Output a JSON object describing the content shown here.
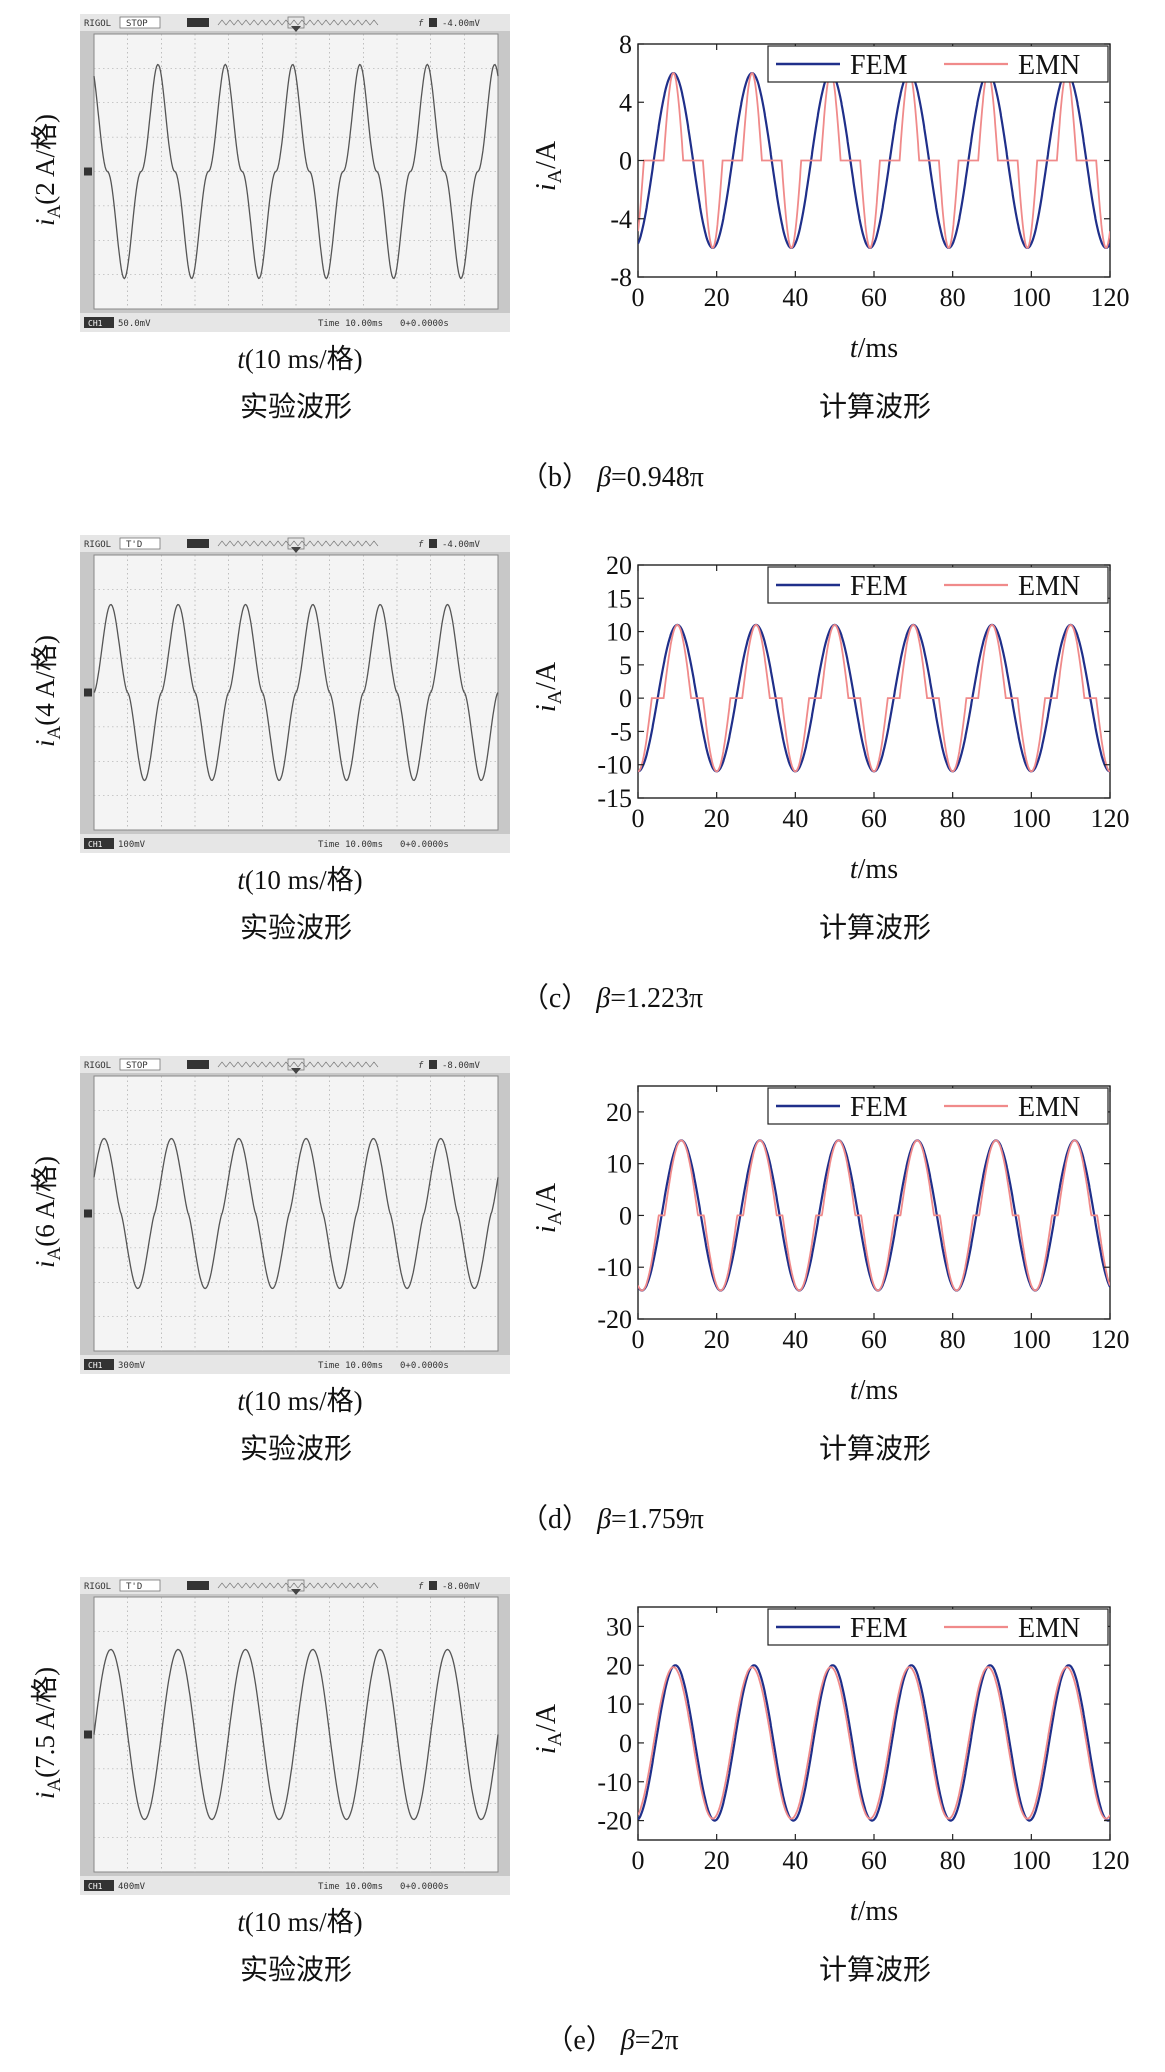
{
  "panels": [
    {
      "caption": {
        "prefix": "（b）",
        "beta": "β",
        "rest": "=0.948π"
      },
      "oscilloscope": {
        "brand": "RIGOL",
        "status": "STOP",
        "trigger": "-4.00mV",
        "channel": "CH1",
        "volts_div": "50.0mV",
        "time_div": "Time 10.00ms",
        "offset": "0+0.0000s",
        "ylabel_italic": "i",
        "ylabel_sub": "A",
        "ylabel_rest": "(2 A/格)",
        "xlabel_italic": "t",
        "xlabel_rest": "(10 ms/格)",
        "caption": "实验波形"
      },
      "sim": {
        "caption": "计算波形"
      }
    },
    {
      "caption": {
        "prefix": "（c）",
        "beta": "β",
        "rest": "=1.223π"
      },
      "oscilloscope": {
        "brand": "RIGOL",
        "status": "T'D",
        "trigger": "-4.00mV",
        "channel": "CH1",
        "volts_div": "100mV",
        "time_div": "Time 10.00ms",
        "offset": "0+0.0000s",
        "ylabel_italic": "i",
        "ylabel_sub": "A",
        "ylabel_rest": "(4 A/格)",
        "xlabel_italic": "t",
        "xlabel_rest": "(10 ms/格)",
        "caption": "实验波形"
      },
      "sim": {
        "caption": "计算波形"
      }
    },
    {
      "caption": {
        "prefix": "（d）",
        "beta": "β",
        "rest": "=1.759π"
      },
      "oscilloscope": {
        "brand": "RIGOL",
        "status": "STOP",
        "trigger": "-8.00mV",
        "channel": "CH1",
        "volts_div": "300mV",
        "time_div": "Time 10.00ms",
        "offset": "0+0.0000s",
        "ylabel_italic": "i",
        "ylabel_sub": "A",
        "ylabel_rest": "(6 A/格)",
        "xlabel_italic": "t",
        "xlabel_rest": "(10 ms/格)",
        "caption": "实验波形"
      },
      "sim": {
        "caption": "计算波形"
      }
    },
    {
      "caption": {
        "prefix": "（e）",
        "beta": "β",
        "rest": "=2π"
      },
      "oscilloscope": {
        "brand": "RIGOL",
        "status": "T'D",
        "trigger": "-8.00mV",
        "channel": "CH1",
        "volts_div": "400mV",
        "time_div": "Time 10.00ms",
        "offset": "0+0.0000s",
        "ylabel_italic": "i",
        "ylabel_sub": "A",
        "ylabel_rest": "(7.5 A/格)",
        "xlabel_italic": "t",
        "xlabel_rest": "(10 ms/格)",
        "caption": "实验波形"
      },
      "sim": {
        "caption": "计算波形"
      }
    }
  ],
  "colors": {
    "fem": "#1f2f8a",
    "emn": "#f08a8a",
    "scope_bg": "#f4f4f4",
    "scope_frame": "#c8c8c8",
    "trace": "#555555"
  },
  "chart_data": [
    {
      "type": "line",
      "xlabel_italic": "t",
      "xlabel_rest": "/ms",
      "ylabel_italic": "i",
      "ylabel_sub": "A",
      "ylabel_rest": "/A",
      "xlim": [
        0,
        120
      ],
      "ylim": [
        -8,
        8
      ],
      "xticks": [
        0,
        20,
        40,
        60,
        80,
        100,
        120
      ],
      "yticks": [
        -8,
        -4,
        0,
        4,
        8
      ],
      "legend": "top-right",
      "grid": false,
      "period_ms": 20,
      "series": [
        {
          "name": "FEM",
          "amplitude": 6.0,
          "peak_time_ms": 9.0,
          "shape": "sine",
          "x": [
            0,
            4,
            9,
            14,
            19,
            24,
            29,
            34,
            39,
            44,
            49,
            54,
            59,
            64,
            69,
            74,
            79,
            84,
            89,
            94,
            99,
            104,
            109,
            114,
            119,
            120
          ],
          "y": [
            -5.7,
            0,
            6,
            0,
            -6,
            0,
            6,
            0,
            -6,
            0,
            6,
            0,
            -6,
            0,
            6,
            0,
            -6,
            0,
            6,
            0,
            -6,
            0,
            6,
            0,
            -6,
            -5.7
          ]
        },
        {
          "name": "EMN",
          "amplitude": 6.0,
          "peak_time_ms": 9.0,
          "shape": "sine with zero dwell",
          "dead_fraction": 0.5,
          "x": [
            0,
            2,
            6.5,
            9,
            11.5,
            16,
            19,
            22,
            26.5,
            29,
            31.5,
            36,
            39,
            42,
            46.5,
            49,
            51.5,
            56,
            59,
            62,
            66.5,
            69,
            71.5,
            76,
            79,
            82,
            86.5,
            89,
            91.5,
            96,
            99,
            102,
            106.5,
            109,
            111.5,
            116,
            119,
            120
          ],
          "y": [
            -5.4,
            0,
            0,
            6,
            0,
            0,
            -6,
            0,
            0,
            6,
            0,
            0,
            -6,
            0,
            0,
            6,
            0,
            0,
            -6,
            0,
            0,
            6,
            0,
            0,
            -6,
            0,
            0,
            6,
            0,
            0,
            -6,
            0,
            0,
            6,
            0,
            0,
            -6,
            -5.4
          ]
        }
      ]
    },
    {
      "type": "line",
      "xlabel_italic": "t",
      "xlabel_rest": "/ms",
      "ylabel_italic": "i",
      "ylabel_sub": "A",
      "ylabel_rest": "/A",
      "xlim": [
        0,
        120
      ],
      "ylim": [
        -15,
        20
      ],
      "xticks": [
        0,
        20,
        40,
        60,
        80,
        100,
        120
      ],
      "yticks": [
        -15,
        -10,
        -5,
        0,
        5,
        10,
        15,
        20
      ],
      "legend": "top-right",
      "grid": false,
      "period_ms": 20,
      "series": [
        {
          "name": "FEM",
          "amplitude": 11.0,
          "peak_time_ms": 10.0,
          "shape": "sine",
          "x": [
            0,
            5,
            10,
            15,
            20,
            25,
            30,
            35,
            40,
            45,
            50,
            55,
            60,
            65,
            70,
            75,
            80,
            85,
            90,
            95,
            100,
            105,
            110,
            115,
            120
          ],
          "y": [
            -11,
            0,
            11,
            0,
            -11,
            0,
            11,
            0,
            -11,
            0,
            11,
            0,
            -11,
            0,
            11,
            0,
            -11,
            0,
            11,
            0,
            -11,
            0,
            11,
            0,
            -11
          ]
        },
        {
          "name": "EMN",
          "amplitude": 11.0,
          "peak_time_ms": 10.0,
          "shape": "sine with zero dwell",
          "dead_fraction": 0.3,
          "x": [
            0,
            10,
            20,
            30,
            40,
            50,
            60,
            70,
            80,
            90,
            100,
            110,
            120
          ],
          "y": [
            -11,
            11,
            -11,
            11,
            -11,
            11,
            -11,
            11,
            -11,
            11,
            -11,
            11,
            -11
          ]
        }
      ]
    },
    {
      "type": "line",
      "xlabel_italic": "t",
      "xlabel_rest": "/ms",
      "ylabel_italic": "i",
      "ylabel_sub": "A",
      "ylabel_rest": "/A",
      "xlim": [
        0,
        120
      ],
      "ylim": [
        -20,
        25
      ],
      "xticks": [
        0,
        20,
        40,
        60,
        80,
        100,
        120
      ],
      "yticks": [
        -20,
        -10,
        0,
        10,
        20
      ],
      "legend": "top-right",
      "grid": false,
      "period_ms": 20,
      "series": [
        {
          "name": "FEM",
          "amplitude": 14.5,
          "peak_time_ms": 11.0,
          "shape": "sine",
          "x": [
            1,
            6,
            11,
            16,
            21,
            26,
            31,
            36,
            41,
            46,
            51,
            56,
            61,
            66,
            71,
            76,
            81,
            86,
            91,
            96,
            101,
            106,
            111,
            116
          ],
          "y": [
            -14.5,
            0,
            14.5,
            0,
            -14.5,
            0,
            14.5,
            0,
            -14.5,
            0,
            14.5,
            0,
            -14.5,
            0,
            14.5,
            0,
            -14.5,
            0,
            14.5,
            0,
            -14.5,
            0,
            14.5,
            0
          ]
        },
        {
          "name": "EMN",
          "amplitude": 14.5,
          "peak_time_ms": 11.0,
          "shape": "sine with zero dwell",
          "dead_fraction": 0.15,
          "x": [
            1,
            11,
            21,
            31,
            41,
            51,
            61,
            71,
            81,
            91,
            101,
            111
          ],
          "y": [
            -14.5,
            14.5,
            -14.5,
            14.5,
            -14.5,
            14.5,
            -14.5,
            14.5,
            -14.5,
            14.5,
            -14.5,
            14.5
          ]
        }
      ]
    },
    {
      "type": "line",
      "xlabel_italic": "t",
      "xlabel_rest": "/ms",
      "ylabel_italic": "i",
      "ylabel_sub": "A",
      "ylabel_rest": "/A",
      "xlim": [
        0,
        120
      ],
      "ylim": [
        -25,
        35
      ],
      "xticks": [
        0,
        20,
        40,
        60,
        80,
        100,
        120
      ],
      "yticks": [
        -20,
        -10,
        0,
        10,
        20,
        30
      ],
      "legend": "top-right",
      "grid": false,
      "period_ms": 20,
      "series": [
        {
          "name": "FEM",
          "amplitude": 20.0,
          "peak_time_ms": 9.5,
          "shape": "sine",
          "x": [
            -0.5,
            4.5,
            9.5,
            14.5,
            19.5,
            24.5,
            29.5,
            34.5,
            39.5,
            44.5,
            49.5,
            54.5,
            59.5,
            64.5,
            69.5,
            74.5,
            79.5,
            84.5,
            89.5,
            94.5,
            99.5,
            104.5,
            109.5,
            114.5,
            119.5
          ],
          "y": [
            -20,
            0,
            20,
            0,
            -20,
            0,
            20,
            0,
            -20,
            0,
            20,
            0,
            -20,
            0,
            20,
            0,
            -20,
            0,
            20,
            0,
            -20,
            0,
            20,
            0,
            -20
          ]
        },
        {
          "name": "EMN",
          "amplitude": 19.5,
          "peak_time_ms": 9.0,
          "shape": "sine",
          "x": [
            -1,
            4,
            9,
            14,
            19,
            24,
            29,
            34,
            39,
            44,
            49,
            54,
            59,
            64,
            69,
            74,
            79,
            84,
            89,
            94,
            99,
            104,
            109,
            114,
            119
          ],
          "y": [
            -19.5,
            0,
            19.5,
            0,
            -19.5,
            0,
            19.5,
            0,
            -19.5,
            0,
            19.5,
            0,
            -19.5,
            0,
            19.5,
            0,
            -19.5,
            0,
            19.5,
            0,
            -19.5,
            0,
            19.5,
            0,
            -19.5
          ]
        }
      ]
    }
  ]
}
